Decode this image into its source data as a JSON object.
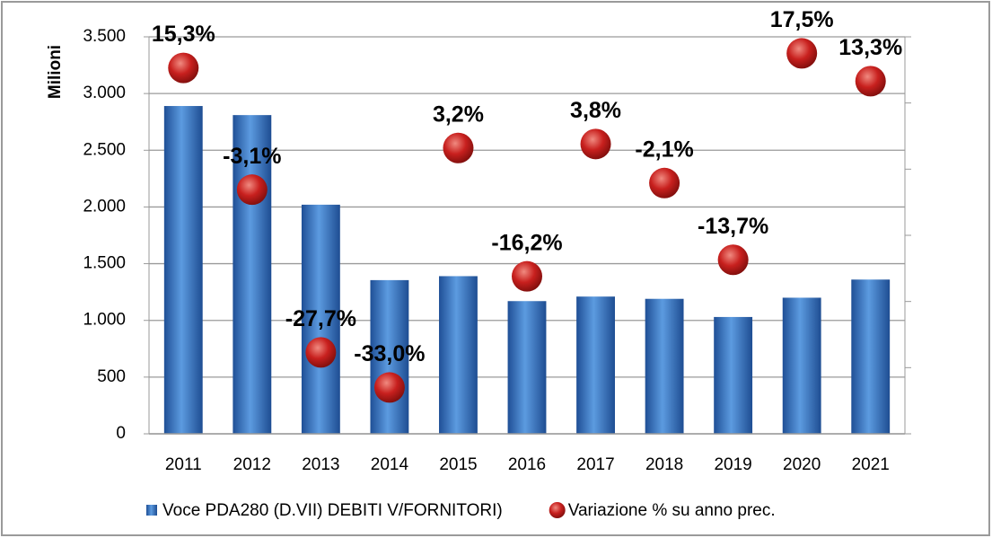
{
  "chart_data": {
    "type": "bar",
    "y_label": "Milioni",
    "categories": [
      "2011",
      "2012",
      "2013",
      "2014",
      "2015",
      "2016",
      "2017",
      "2018",
      "2019",
      "2020",
      "2021"
    ],
    "ylim": [
      0,
      3500
    ],
    "yticks": [
      0,
      500,
      {
        "value": 1000,
        "label": "1.000"
      },
      {
        "value": 1500,
        "label": "1.500"
      },
      {
        "value": 2000,
        "label": "2.000"
      },
      {
        "value": 2500,
        "label": "2.500"
      },
      {
        "value": 3000,
        "label": "3.000"
      },
      {
        "value": 3500,
        "label": "3.500"
      }
    ],
    "y2lim": [
      -40,
      20
    ],
    "y2ticks": [
      -40,
      -30,
      -20,
      -10,
      0,
      10,
      20
    ],
    "grid": true,
    "legend": "bottom",
    "series": [
      {
        "name": "Voce PDA280 (D.VII) DEBITI V/FORNITORI)",
        "type": "bar",
        "color": "#3b78c9",
        "values": [
          2890,
          2810,
          2020,
          1355,
          1390,
          1170,
          1210,
          1190,
          1030,
          1200,
          1360
        ]
      },
      {
        "name": "Variazione % su anno prec.",
        "type": "scatter",
        "axis": "y2",
        "color": "#c8201e",
        "values": [
          15.3,
          -3.1,
          -27.7,
          -33.0,
          3.2,
          -16.2,
          3.8,
          -2.1,
          -13.7,
          17.5,
          13.3
        ],
        "value_labels": [
          "15,3%",
          "-3,1%",
          "-27,7%",
          "-33,0%",
          "3,2%",
          "-16,2%",
          "3,8%",
          "-2,1%",
          "-13,7%",
          "17,5%",
          "13,3%"
        ]
      }
    ]
  }
}
